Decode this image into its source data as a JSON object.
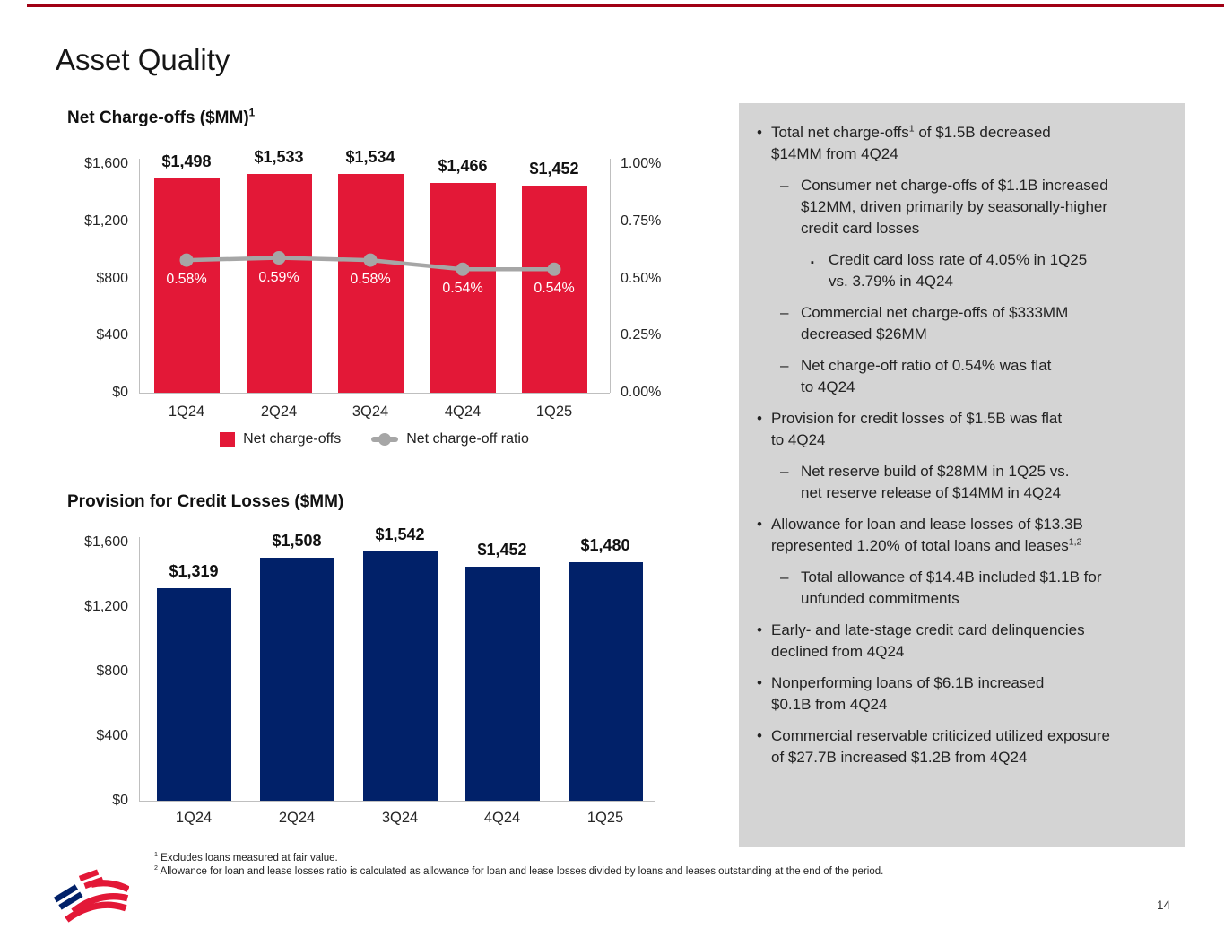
{
  "page": {
    "title": "Asset Quality",
    "page_number": "14"
  },
  "colors": {
    "bar_red": "#e31837",
    "bar_blue": "#012169",
    "line_gray": "#a6a6a6",
    "sidebar_bg": "#d4d4d4",
    "top_rule": "#a00014",
    "axis_gray": "#bfbfbf"
  },
  "chart_data": [
    {
      "type": "bar+line",
      "title": "Net Charge-offs ($MM)",
      "title_sup": "1",
      "categories": [
        "1Q24",
        "2Q24",
        "3Q24",
        "4Q24",
        "1Q25"
      ],
      "series": [
        {
          "name": "Net charge-offs",
          "type": "bar",
          "axis": "left",
          "values": [
            1498,
            1533,
            1534,
            1466,
            1452
          ],
          "labels": [
            "$1,498",
            "$1,533",
            "$1,534",
            "$1,466",
            "$1,452"
          ]
        },
        {
          "name": "Net charge-off ratio",
          "type": "line",
          "axis": "right",
          "values": [
            0.58,
            0.59,
            0.58,
            0.54,
            0.54
          ],
          "labels": [
            "0.58%",
            "0.59%",
            "0.58%",
            "0.54%",
            "0.54%"
          ]
        }
      ],
      "left_axis": {
        "range": [
          0,
          1600
        ],
        "ticks": [
          {
            "v": 1600,
            "label": "$1,600"
          },
          {
            "v": 1200,
            "label": "$1,200"
          },
          {
            "v": 800,
            "label": "$800"
          },
          {
            "v": 400,
            "label": "$400"
          },
          {
            "v": 0,
            "label": "$0"
          }
        ]
      },
      "right_axis": {
        "range": [
          0,
          1.0
        ],
        "ticks": [
          {
            "v": 1.0,
            "label": "1.00%"
          },
          {
            "v": 0.75,
            "label": "0.75%"
          },
          {
            "v": 0.5,
            "label": "0.50%"
          },
          {
            "v": 0.25,
            "label": "0.25%"
          },
          {
            "v": 0,
            "label": "0.00%"
          }
        ]
      },
      "legend": [
        {
          "type": "bar",
          "label": "Net charge-offs"
        },
        {
          "type": "line",
          "label": "Net charge-off ratio"
        }
      ]
    },
    {
      "type": "bar",
      "title": "Provision for Credit Losses ($MM)",
      "title_sup": "",
      "categories": [
        "1Q24",
        "2Q24",
        "3Q24",
        "4Q24",
        "1Q25"
      ],
      "series": [
        {
          "name": "Provision for credit losses",
          "type": "bar",
          "axis": "left",
          "values": [
            1319,
            1508,
            1542,
            1452,
            1480
          ],
          "labels": [
            "$1,319",
            "$1,508",
            "$1,542",
            "$1,452",
            "$1,480"
          ]
        }
      ],
      "left_axis": {
        "range": [
          0,
          1600
        ],
        "ticks": [
          {
            "v": 1600,
            "label": "$1,600"
          },
          {
            "v": 1200,
            "label": "$1,200"
          },
          {
            "v": 800,
            "label": "$800"
          },
          {
            "v": 400,
            "label": "$400"
          },
          {
            "v": 0,
            "label": "$0"
          }
        ]
      }
    }
  ],
  "sidebar": {
    "markers": {
      "1": "•",
      "2": "–",
      "3": "▪"
    },
    "bullets": [
      {
        "level": 1,
        "parts": [
          {
            "t": "Total net charge-offs"
          },
          {
            "sup": "1"
          },
          {
            "t": " of $1.5B decreased\n$14MM from 4Q24"
          }
        ]
      },
      {
        "level": 2,
        "parts": [
          {
            "t": "Consumer net charge-offs of $1.1B increased\n$12MM, driven primarily by seasonally-higher\ncredit card losses"
          }
        ]
      },
      {
        "level": 3,
        "parts": [
          {
            "t": "Credit card loss rate of 4.05% in 1Q25\nvs. 3.79% in 4Q24"
          }
        ]
      },
      {
        "level": 2,
        "parts": [
          {
            "t": "Commercial net charge-offs of $333MM\ndecreased $26MM"
          }
        ]
      },
      {
        "level": 2,
        "parts": [
          {
            "t": "Net charge-off ratio of 0.54% was flat\nto 4Q24"
          }
        ]
      },
      {
        "level": 1,
        "parts": [
          {
            "t": "Provision for credit losses of $1.5B was flat\nto 4Q24"
          }
        ]
      },
      {
        "level": 2,
        "parts": [
          {
            "t": "Net reserve build of $28MM in 1Q25 vs.\nnet reserve release of $14MM in 4Q24"
          }
        ]
      },
      {
        "level": 1,
        "parts": [
          {
            "t": "Allowance for loan and lease losses of $13.3B\nrepresented 1.20% of total loans and leases"
          },
          {
            "sup": "1,2"
          }
        ]
      },
      {
        "level": 2,
        "parts": [
          {
            "t": "Total allowance of $14.4B included $1.1B for\nunfunded commitments"
          }
        ]
      },
      {
        "level": 1,
        "parts": [
          {
            "t": "Early- and late-stage credit card delinquencies\ndeclined from 4Q24"
          }
        ]
      },
      {
        "level": 1,
        "parts": [
          {
            "t": "Nonperforming loans of $6.1B increased\n$0.1B from 4Q24"
          }
        ]
      },
      {
        "level": 1,
        "parts": [
          {
            "t": "Commercial reservable criticized utilized exposure\nof $27.7B increased $1.2B from 4Q24"
          }
        ]
      }
    ]
  },
  "footnotes": [
    {
      "sup": "1",
      "t": "Excludes loans measured at fair value."
    },
    {
      "sup": "2",
      "t": "Allowance for loan and lease losses ratio is calculated as allowance for loan and lease losses divided by loans and leases outstanding at the end of the period."
    }
  ],
  "icons": {
    "logo": "bank-of-america-flagscape"
  }
}
